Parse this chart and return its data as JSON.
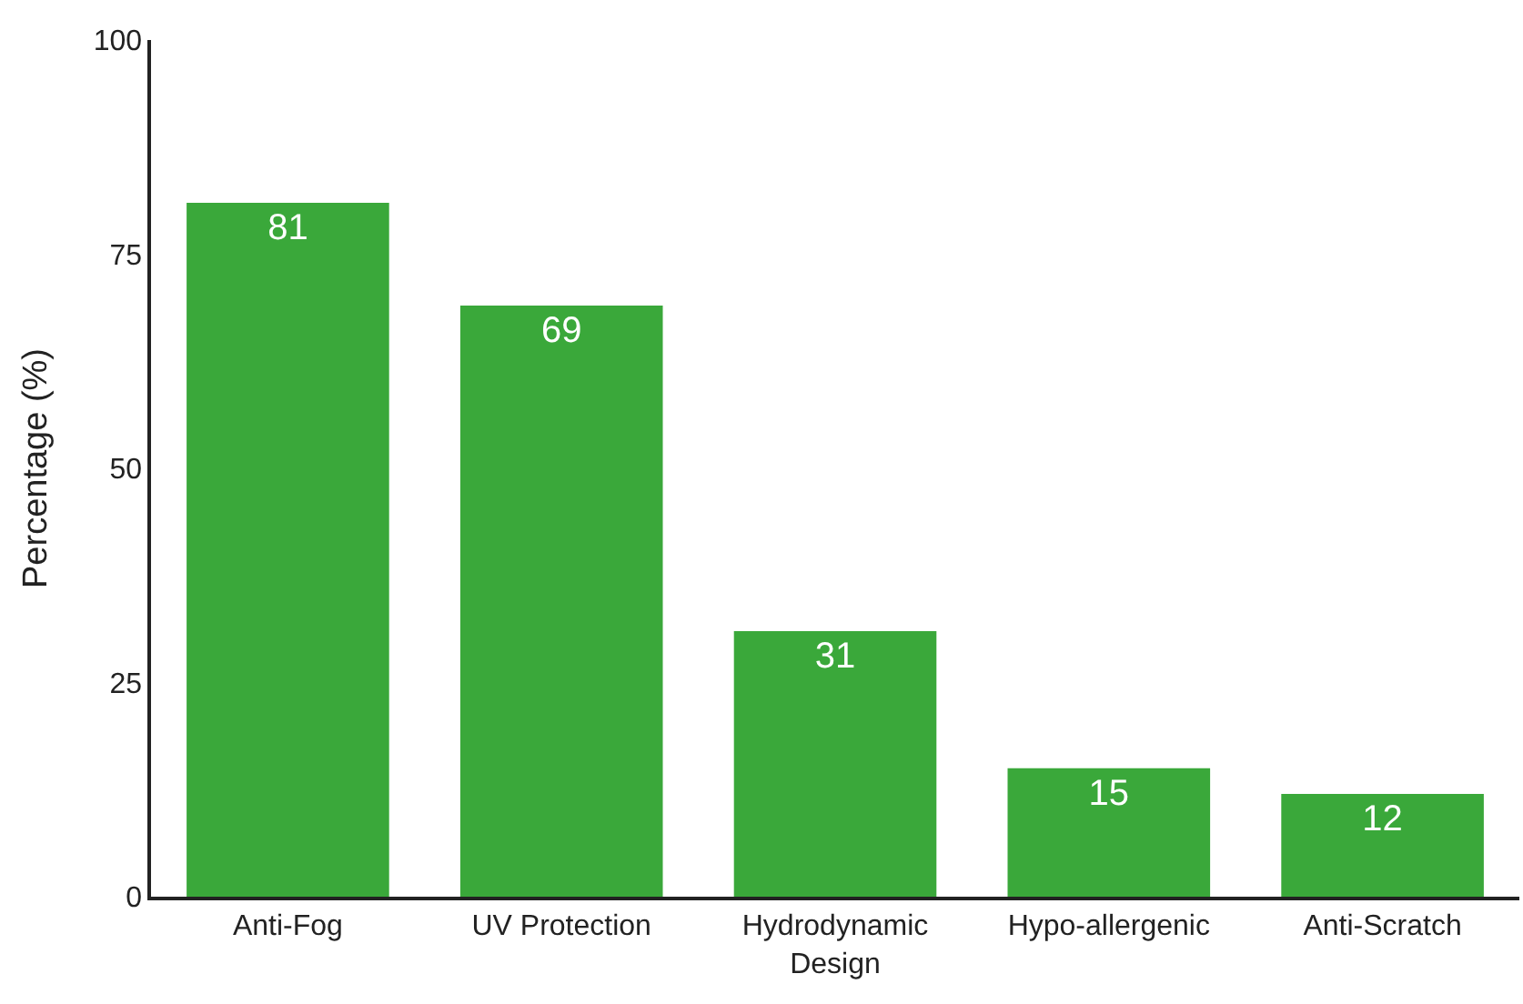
{
  "chart_data": {
    "type": "bar",
    "ylabel": "Percentage (%)",
    "categories": [
      "Anti-Fog",
      "UV Protection",
      "Hydrodynamic Design",
      "Hypo-allergenic",
      "Anti-Scratch"
    ],
    "values": [
      81,
      69,
      31,
      15,
      12
    ],
    "color": "#3aa83a",
    "ylim": [
      0,
      100
    ],
    "yticks": [
      0,
      25,
      50,
      75,
      100
    ],
    "data_labels": true
  }
}
